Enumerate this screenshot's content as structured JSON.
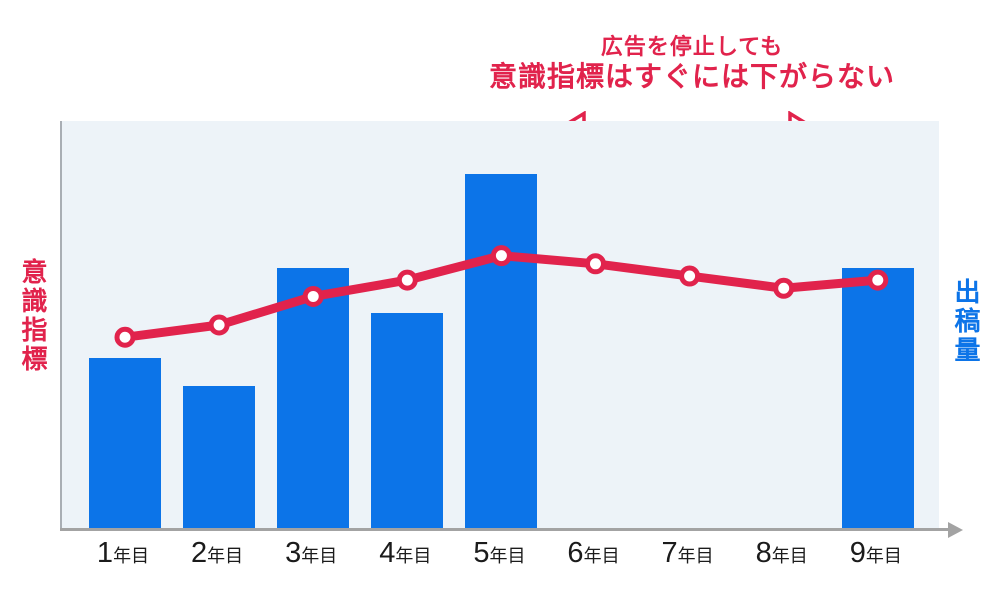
{
  "annotation": {
    "line1": "広告を停止しても",
    "line2": "意識指標はすぐには下がらない"
  },
  "axes": {
    "left_label": "意識指標",
    "right_label": "出稿量"
  },
  "colors": {
    "bar": "#0c74e8",
    "line": "#e1234c",
    "marker_fill": "#ffffff",
    "annotation_text": "#e1234c",
    "plot_background": "#edf3f8",
    "axis_gray": "#a3a3a3",
    "x_label_text": "#1b1b1b"
  },
  "chart_data": {
    "type": "bar",
    "title": "広告を停止しても 意識指標はすぐには下がらない",
    "categories": [
      {
        "num": "1",
        "suffix": "年目"
      },
      {
        "num": "2",
        "suffix": "年目"
      },
      {
        "num": "3",
        "suffix": "年目"
      },
      {
        "num": "4",
        "suffix": "年目"
      },
      {
        "num": "5",
        "suffix": "年目"
      },
      {
        "num": "6",
        "suffix": "年目"
      },
      {
        "num": "7",
        "suffix": "年目"
      },
      {
        "num": "8",
        "suffix": "年目"
      },
      {
        "num": "9",
        "suffix": "年目"
      }
    ],
    "series": [
      {
        "name": "出稿量",
        "type": "bar",
        "values": [
          42,
          35,
          64,
          53,
          87,
          null,
          null,
          null,
          64
        ]
      },
      {
        "name": "意識指標",
        "type": "line",
        "values": [
          47,
          50,
          57,
          61,
          67,
          65,
          62,
          59,
          61
        ]
      }
    ],
    "ylabel_left": "意識指標",
    "ylabel_right": "出稿量",
    "ylim": [
      0,
      100
    ],
    "grid": false,
    "legend_position": "none",
    "annotation_span": {
      "from_category": "6年目",
      "to_category": "9年目"
    }
  }
}
